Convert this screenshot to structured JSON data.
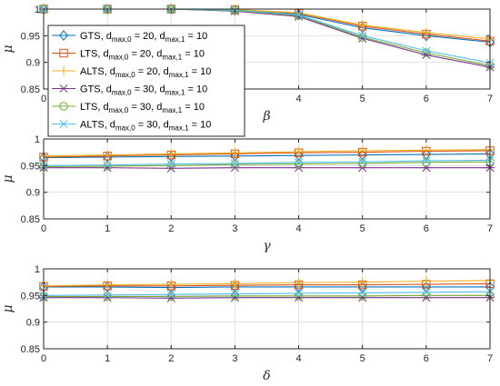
{
  "chart_data": [
    {
      "type": "line",
      "xlabel": "β",
      "ylabel": "μ",
      "xlim": [
        0,
        7
      ],
      "ylim": [
        0.85,
        1.0
      ],
      "xticks": [
        "0",
        "1",
        "2",
        "3",
        "4",
        "5",
        "6",
        "7"
      ],
      "yticks": [
        "0.85",
        "0.9",
        "0.95",
        "1"
      ],
      "grid": true,
      "legend": "top-left",
      "x": [
        0,
        1,
        2,
        3,
        4,
        5,
        6,
        7
      ],
      "series": [
        {
          "name": "GTS, d_max,0 = 20, d_max,1 = 10",
          "values": [
            1.0,
            1.0,
            1.0,
            0.998,
            0.99,
            0.965,
            0.95,
            0.938
          ],
          "color": "#0072BD",
          "marker": "diamond"
        },
        {
          "name": "LTS, d_max,0 = 20, d_max,1 = 10",
          "values": [
            1.0,
            1.0,
            1.0,
            0.999,
            0.992,
            0.968,
            0.953,
            0.94
          ],
          "color": "#D95319",
          "marker": "square"
        },
        {
          "name": "ALTS, d_max,0 = 20, d_max,1 = 10",
          "values": [
            1.0,
            1.0,
            1.0,
            0.999,
            0.993,
            0.97,
            0.956,
            0.944
          ],
          "color": "#EDB120",
          "marker": "plus"
        },
        {
          "name": "GTS, d_max,0 = 30, d_max,1 = 10",
          "values": [
            1.0,
            1.0,
            1.0,
            0.996,
            0.986,
            0.945,
            0.914,
            0.891
          ],
          "color": "#7E2F8E",
          "marker": "asterisk"
        },
        {
          "name": "LTS, d_max,0 = 30, d_max,1 = 10",
          "values": [
            1.0,
            1.0,
            1.0,
            0.997,
            0.988,
            0.947,
            0.918,
            0.894
          ],
          "color": "#77AC30",
          "marker": "circle"
        },
        {
          "name": "ALTS, d_max,0 = 30, d_max,1 = 10",
          "values": [
            1.0,
            1.0,
            1.0,
            0.998,
            0.989,
            0.95,
            0.922,
            0.899
          ],
          "color": "#4DBEEE",
          "marker": "x"
        }
      ]
    },
    {
      "type": "line",
      "xlabel": "γ",
      "ylabel": "μ",
      "xlim": [
        0,
        7
      ],
      "ylim": [
        0.85,
        1.0
      ],
      "xticks": [
        "0",
        "1",
        "2",
        "3",
        "4",
        "5",
        "6",
        "7"
      ],
      "yticks": [
        "0.85",
        "0.9",
        "0.95",
        "1"
      ],
      "grid": true,
      "x": [
        0,
        1,
        2,
        3,
        4,
        5,
        6,
        7
      ],
      "series": [
        {
          "values": [
            0.965,
            0.966,
            0.967,
            0.968,
            0.969,
            0.97,
            0.971,
            0.972
          ],
          "color": "#0072BD",
          "marker": "diamond"
        },
        {
          "values": [
            0.966,
            0.968,
            0.97,
            0.972,
            0.974,
            0.975,
            0.977,
            0.978
          ],
          "color": "#D95319",
          "marker": "square"
        },
        {
          "values": [
            0.968,
            0.97,
            0.972,
            0.974,
            0.976,
            0.978,
            0.979,
            0.98
          ],
          "color": "#EDB120",
          "marker": "plus"
        },
        {
          "values": [
            0.946,
            0.946,
            0.945,
            0.946,
            0.946,
            0.946,
            0.946,
            0.946
          ],
          "color": "#7E2F8E",
          "marker": "asterisk"
        },
        {
          "values": [
            0.948,
            0.949,
            0.95,
            0.952,
            0.953,
            0.954,
            0.956,
            0.957
          ],
          "color": "#77AC30",
          "marker": "circle"
        },
        {
          "values": [
            0.95,
            0.951,
            0.953,
            0.954,
            0.956,
            0.957,
            0.959,
            0.96
          ],
          "color": "#4DBEEE",
          "marker": "x"
        }
      ]
    },
    {
      "type": "line",
      "xlabel": "δ",
      "ylabel": "μ",
      "xlim": [
        0,
        7
      ],
      "ylim": [
        0.85,
        1.0
      ],
      "xticks": [
        "0",
        "1",
        "2",
        "3",
        "4",
        "5",
        "6",
        "7"
      ],
      "yticks": [
        "0.85",
        "0.9",
        "0.95",
        "1"
      ],
      "grid": true,
      "x": [
        0,
        1,
        2,
        3,
        4,
        5,
        6,
        7
      ],
      "series": [
        {
          "values": [
            0.966,
            0.966,
            0.965,
            0.966,
            0.966,
            0.966,
            0.966,
            0.966
          ],
          "color": "#0072BD",
          "marker": "diamond"
        },
        {
          "values": [
            0.967,
            0.968,
            0.968,
            0.969,
            0.97,
            0.97,
            0.971,
            0.972
          ],
          "color": "#D95319",
          "marker": "square"
        },
        {
          "values": [
            0.968,
            0.97,
            0.971,
            0.972,
            0.974,
            0.975,
            0.977,
            0.978
          ],
          "color": "#EDB120",
          "marker": "plus"
        },
        {
          "values": [
            0.946,
            0.946,
            0.945,
            0.946,
            0.946,
            0.946,
            0.946,
            0.946
          ],
          "color": "#7E2F8E",
          "marker": "asterisk"
        },
        {
          "values": [
            0.948,
            0.948,
            0.948,
            0.949,
            0.949,
            0.949,
            0.95,
            0.95
          ],
          "color": "#77AC30",
          "marker": "circle"
        },
        {
          "values": [
            0.95,
            0.951,
            0.952,
            0.953,
            0.954,
            0.955,
            0.956,
            0.957
          ],
          "color": "#4DBEEE",
          "marker": "x"
        }
      ]
    }
  ],
  "legend_entries": [
    {
      "method": "GTS",
      "d0": "20",
      "d1": "10"
    },
    {
      "method": "LTS",
      "d0": "20",
      "d1": "10"
    },
    {
      "method": "ALTS",
      "d0": "20",
      "d1": "10"
    },
    {
      "method": "GTS",
      "d0": "30",
      "d1": "10"
    },
    {
      "method": "LTS",
      "d0": "30",
      "d1": "10"
    },
    {
      "method": "ALTS",
      "d0": "30",
      "d1": "10"
    }
  ],
  "legend_parts": {
    "d": "d",
    "sub0": "max,0",
    "sub1": "max,1",
    "eq": " = ",
    "sep": ", "
  }
}
